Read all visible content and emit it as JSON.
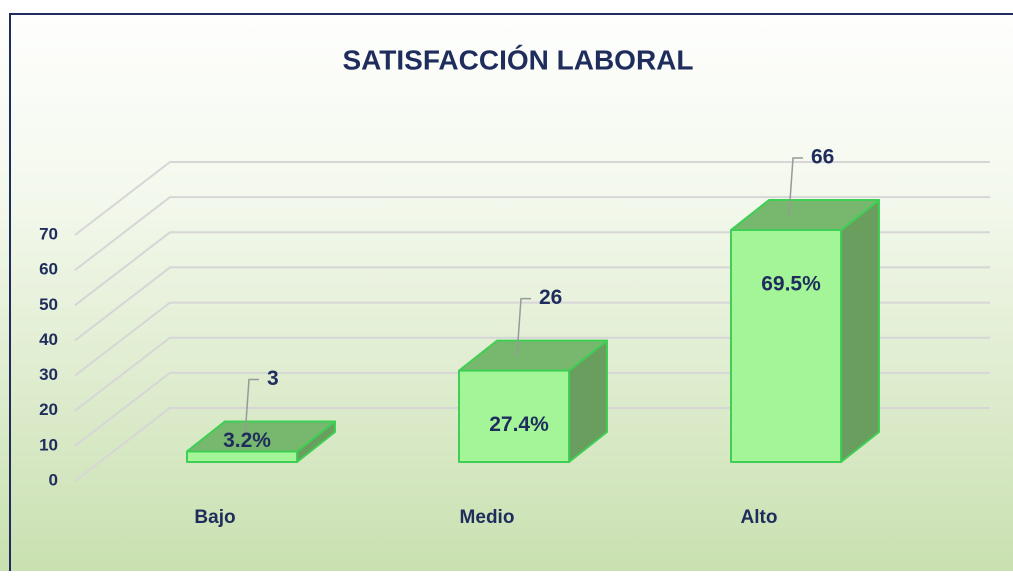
{
  "chart_data": {
    "type": "bar3d",
    "title": "SATISFACCIÓN LABORAL",
    "categories": [
      "Bajo",
      "Medio",
      "Alto"
    ],
    "values": [
      3,
      26,
      66
    ],
    "percentages": [
      3.2,
      27.4,
      69.5
    ],
    "percentage_labels": [
      "3.2%",
      "27.4%",
      "69.5%"
    ],
    "color": "#a3f598",
    "ylim": [
      0,
      70
    ],
    "yticks": [
      0,
      10,
      20,
      30,
      40,
      50,
      60,
      70
    ],
    "grid": true
  }
}
